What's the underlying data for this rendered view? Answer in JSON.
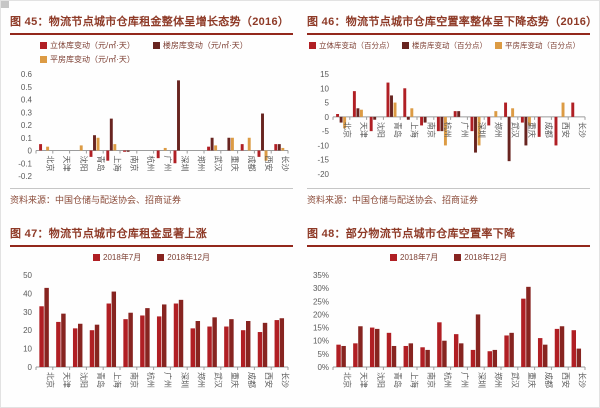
{
  "page": {
    "description_colors": {
      "accent_red": "#b01f24",
      "dark_maroon": "#682420",
      "tan_orange": "#dc9b44",
      "dec_dark_red": "#872420",
      "title_red": "#8e3a27"
    }
  },
  "chart_data": [
    {
      "id": "fig45",
      "type": "bar",
      "title": "图 45：物流节点城市仓库租金整体呈增长态势（2016）",
      "source": "资料来源：中国仓储与配送协会、招商证券",
      "categories": [
        "北京",
        "天津",
        "沈阳",
        "青岛",
        "上海",
        "南京",
        "杭州",
        "广州",
        "深圳",
        "郑州",
        "武汉",
        "重庆",
        "成都",
        "西安",
        "长沙"
      ],
      "series": [
        {
          "name": "立体库变动（元/㎡·天）",
          "color": "#b01f24",
          "values": [
            0.05,
            0,
            0,
            -0.05,
            -0.08,
            -0.01,
            0,
            -0.06,
            -0.1,
            0,
            0.03,
            0,
            0.05,
            -0.05,
            0.05
          ]
        },
        {
          "name": "楼房库变动（元/㎡·天）",
          "color": "#682420",
          "values": [
            0,
            0,
            0,
            0.12,
            0.25,
            -0.01,
            0,
            0,
            0.55,
            0,
            0.1,
            0.1,
            0,
            0.29,
            0.05
          ]
        },
        {
          "name": "平房库变动（元/㎡·天）",
          "color": "#dc9b44",
          "values": [
            0.03,
            0,
            0.04,
            0.1,
            0.05,
            0,
            0,
            0.02,
            0,
            0,
            0.04,
            0.1,
            0.1,
            -0.08,
            0.02
          ]
        }
      ],
      "ylim": [
        -0.2,
        0.6
      ],
      "yticks": [
        0.6,
        0.5,
        0.4,
        0.3,
        0.2,
        0.1,
        0,
        -0.1,
        -0.2
      ],
      "ytick_labels": [
        "0.6",
        "0.5",
        "0.4",
        "0.3",
        "0.2",
        "0.1",
        "0",
        "-0.1",
        "-0.2"
      ],
      "legend_position": "top",
      "grid": false
    },
    {
      "id": "fig46",
      "type": "bar",
      "title": "图 46：物流节点城市仓库空置率整体呈下降态势（2016）",
      "source": "资料来源：中国仓储与配送协会、招商证券",
      "categories": [
        "北京",
        "天津",
        "沈阳",
        "青岛",
        "上海",
        "南京",
        "杭州",
        "广州",
        "深圳",
        "郑州",
        "武汉",
        "重庆",
        "成都",
        "西安",
        "长沙"
      ],
      "series": [
        {
          "name": "立体库变动（百分点）",
          "color": "#b01f24",
          "values": [
            1,
            9,
            -5,
            12,
            10,
            -3,
            -5,
            2,
            -5,
            -3,
            5,
            -2,
            -7,
            -10,
            5
          ]
        },
        {
          "name": "楼房库变动（百分点）",
          "color": "#682420",
          "values": [
            -2,
            3,
            -1,
            7.5,
            -1,
            -2,
            -5,
            2,
            -12.5,
            0,
            -15.5,
            -10,
            0,
            0,
            0
          ]
        },
        {
          "name": "平房库变动（百分点）",
          "color": "#dc9b44",
          "values": [
            -4,
            2.5,
            0,
            5,
            3,
            0,
            -10,
            0,
            -10,
            2,
            3,
            -3,
            0,
            5,
            0
          ]
        }
      ],
      "ylim": [
        -20,
        15
      ],
      "yticks": [
        15,
        10,
        5,
        0,
        -5,
        -10,
        -15,
        -20
      ],
      "ytick_labels": [
        "15",
        "10",
        "5",
        "0",
        "-5",
        "-10",
        "-15",
        "-20"
      ],
      "legend_position": "top",
      "grid": false
    },
    {
      "id": "fig47",
      "type": "bar",
      "title": "图 47：物流节点城市仓库租金显著上涨",
      "source": "",
      "categories": [
        "北京",
        "天津",
        "沈阳",
        "青岛",
        "上海",
        "南京",
        "杭州",
        "广州",
        "深圳",
        "郑州",
        "武汉",
        "重庆",
        "成都",
        "西安",
        "长沙"
      ],
      "series": [
        {
          "name": "2018年7月",
          "color": "#b01f24",
          "values": [
            33,
            24.5,
            21,
            20,
            34.5,
            26,
            28,
            27.5,
            34.5,
            21,
            22,
            22,
            20,
            19,
            25.5
          ]
        },
        {
          "name": "2018年12月",
          "color": "#872420",
          "values": [
            43,
            29,
            23.5,
            23,
            41,
            29.5,
            32,
            34,
            36.5,
            25,
            27,
            26,
            25,
            24,
            26.5
          ]
        }
      ],
      "ylim": [
        0,
        50
      ],
      "yticks": [
        50,
        40,
        30,
        20,
        10,
        0
      ],
      "ytick_labels": [
        "50",
        "40",
        "30",
        "20",
        "10",
        "0"
      ],
      "legend_position": "top",
      "grid": false
    },
    {
      "id": "fig48",
      "type": "bar",
      "title": "图 48：部分物流节点城市仓库空置率下降",
      "source": "",
      "categories": [
        "北京",
        "天津",
        "沈阳",
        "青岛",
        "上海",
        "南京",
        "杭州",
        "广州",
        "深圳",
        "郑州",
        "武汉",
        "重庆",
        "成都",
        "西安",
        "长沙"
      ],
      "series": [
        {
          "name": "2018年7月",
          "color": "#b01f24",
          "values": [
            8.5,
            9,
            15,
            13,
            8,
            7.5,
            17,
            12.5,
            6.5,
            6,
            12,
            26,
            11,
            14.5,
            14
          ]
        },
        {
          "name": "2018年12月",
          "color": "#872420",
          "values": [
            8,
            15.5,
            14.5,
            8,
            9,
            6.5,
            10,
            9,
            20,
            6.5,
            13,
            30.5,
            8.5,
            15.5,
            7
          ]
        }
      ],
      "ylim": [
        0,
        35
      ],
      "yticks": [
        35,
        30,
        25,
        20,
        15,
        10,
        5,
        0
      ],
      "ytick_labels": [
        "35%",
        "30%",
        "25%",
        "20%",
        "15%",
        "10%",
        "5%",
        "0%"
      ],
      "legend_position": "top",
      "grid": false
    }
  ]
}
